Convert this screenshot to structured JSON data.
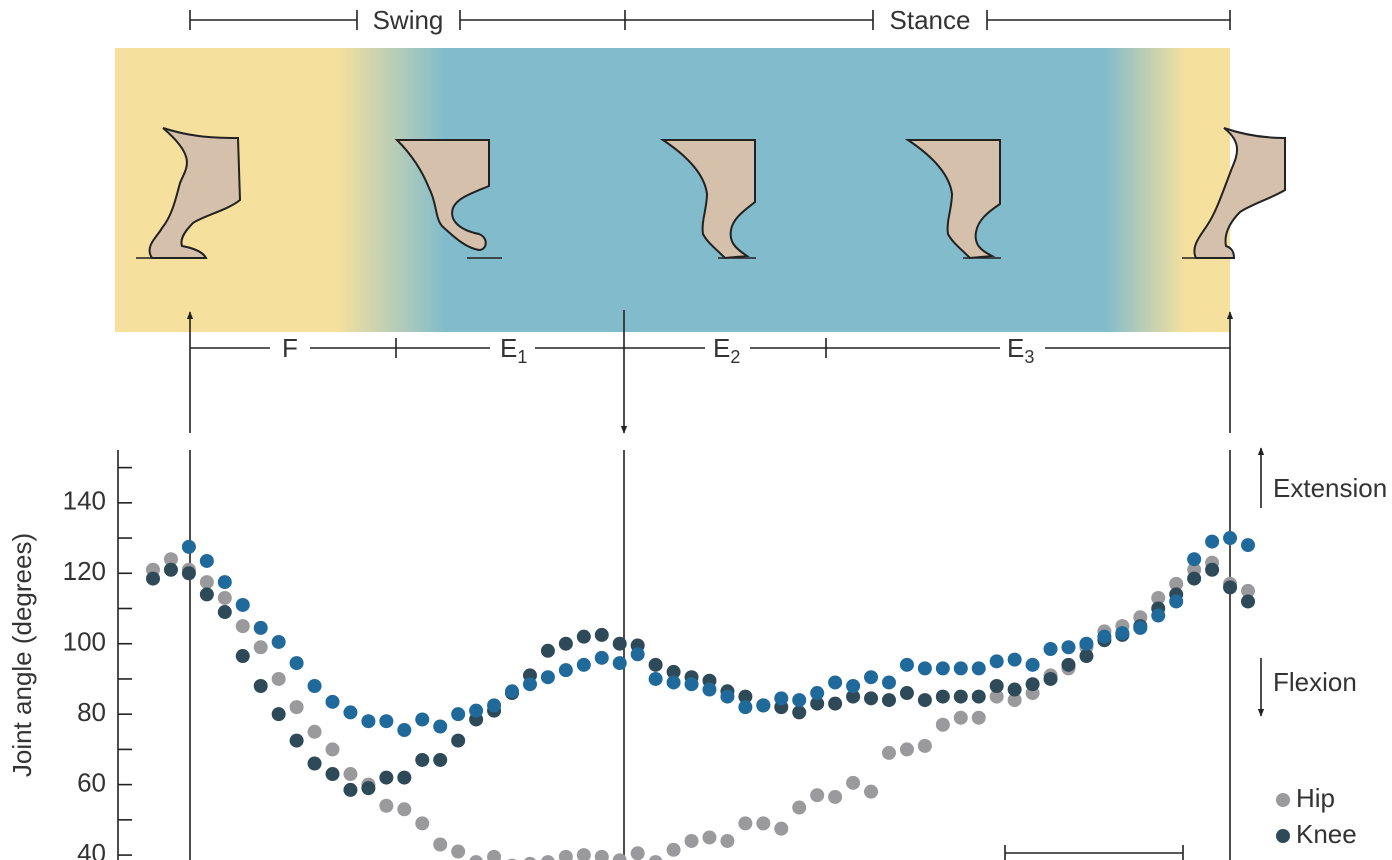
{
  "header": {
    "swing": "Swing",
    "stance": "Stance"
  },
  "phases": [
    {
      "label": "F"
    },
    {
      "label": "E",
      "sub": "1"
    },
    {
      "label": "E",
      "sub": "2"
    },
    {
      "label": "E",
      "sub": "3"
    }
  ],
  "chart_data": {
    "type": "scatter",
    "y_label": "Joint angle (degrees)",
    "ylim": [
      38.6,
      155
    ],
    "yticks": [
      40,
      60,
      80,
      100,
      120,
      140
    ],
    "minor_yticks": [
      50,
      70,
      90,
      110,
      130,
      150
    ],
    "annotations": {
      "up": "Extension",
      "down": "Flexion"
    },
    "series": [
      {
        "name": "Hip",
        "color": "#9a9a9c",
        "values": [
          121,
          124,
          121,
          117.5,
          113,
          105,
          99,
          90,
          82,
          75,
          70,
          63,
          60,
          54,
          53,
          49,
          43,
          41,
          38,
          39.5,
          37,
          37.5,
          38,
          39.5,
          40,
          39.5,
          38.5,
          40.5,
          38,
          41.5,
          44,
          45,
          44,
          49,
          49,
          47.5,
          53.5,
          57,
          56.5,
          60.5,
          58,
          69,
          70,
          71,
          77,
          79,
          79,
          85,
          84,
          86,
          91,
          93,
          99,
          103.5,
          105,
          107.5,
          113,
          117,
          121,
          123,
          117,
          115
        ]
      },
      {
        "name": "Knee",
        "color": "#2e4a58",
        "values": [
          118.5,
          121,
          120,
          114,
          109,
          96.5,
          88,
          80,
          72.5,
          66,
          63,
          58.5,
          59,
          62,
          62,
          67,
          67,
          72.5,
          78.5,
          81,
          86,
          91,
          98,
          100,
          102,
          102.5,
          100,
          99.5,
          94,
          92,
          90.5,
          89.5,
          86.5,
          85,
          82.5,
          82,
          80.5,
          83,
          83,
          85,
          84.5,
          84,
          86,
          84,
          85,
          85,
          85,
          88,
          87,
          88.5,
          90,
          94,
          96.5,
          101,
          102.5,
          105,
          110,
          114,
          118.5,
          121,
          116,
          112
        ]
      },
      {
        "color": "#1f6a9a",
        "values": [
          null,
          null,
          127.5,
          123.5,
          117.5,
          111,
          104.5,
          100.5,
          94.5,
          88,
          83.5,
          80.5,
          78,
          78,
          75.5,
          78.5,
          76.5,
          80,
          81,
          82.5,
          86.5,
          88.5,
          90.5,
          92.5,
          94,
          96,
          94.5,
          97,
          90,
          89,
          88.5,
          87,
          85,
          82,
          82.5,
          84.5,
          84,
          86,
          89,
          88,
          90.5,
          89,
          94,
          93,
          93,
          93,
          93,
          95,
          95.5,
          94,
          98.5,
          99,
          100,
          102,
          103,
          104.5,
          108,
          112,
          124,
          129,
          130,
          128
        ]
      }
    ]
  }
}
